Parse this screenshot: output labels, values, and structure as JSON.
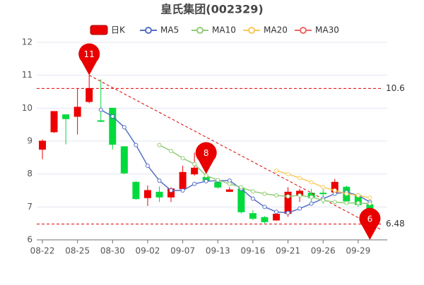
{
  "chart_data": {
    "type": "candlestick",
    "title": "皇氏集团(002329)",
    "categories": [
      "08-22",
      null,
      null,
      "08-25",
      null,
      null,
      "08-30",
      null,
      null,
      "09-02",
      null,
      null,
      "09-07",
      null,
      null,
      "09-13",
      null,
      null,
      "09-16",
      null,
      null,
      "09-21",
      null,
      null,
      "09-26",
      null,
      null,
      "09-29",
      null
    ],
    "candles": {
      "name": "日K",
      "up_color": "#ec0000",
      "down_color": "#00da3c",
      "open": [
        8.75,
        9.28,
        9.8,
        9.75,
        10.2,
        9.62,
        10.0,
        8.83,
        7.75,
        7.28,
        7.45,
        7.3,
        7.55,
        8.0,
        7.9,
        7.75,
        7.47,
        7.55,
        6.8,
        6.68,
        6.6,
        6.8,
        7.35,
        7.42,
        7.42,
        7.45,
        7.6,
        7.35,
        7.07
      ],
      "close": [
        9.0,
        9.9,
        9.68,
        10.03,
        10.6,
        9.6,
        8.9,
        8.03,
        7.25,
        7.5,
        7.3,
        7.55,
        8.05,
        8.18,
        7.8,
        7.6,
        7.52,
        6.85,
        6.65,
        6.55,
        6.78,
        7.45,
        7.48,
        7.28,
        7.4,
        7.75,
        7.18,
        7.07,
        6.55
      ],
      "high": [
        9.05,
        9.9,
        9.8,
        10.6,
        11.0,
        10.88,
        10.0,
        8.85,
        7.78,
        7.65,
        7.62,
        7.6,
        8.25,
        8.65,
        8.0,
        7.8,
        7.6,
        7.58,
        6.9,
        6.72,
        6.85,
        7.6,
        7.55,
        7.55,
        7.55,
        7.85,
        7.65,
        7.4,
        7.07
      ],
      "low": [
        8.45,
        9.25,
        8.9,
        9.2,
        10.15,
        9.58,
        8.75,
        8.0,
        7.22,
        7.03,
        7.15,
        7.15,
        7.45,
        7.95,
        7.75,
        7.55,
        7.45,
        6.8,
        6.6,
        6.5,
        6.58,
        6.7,
        7.15,
        7.1,
        7.1,
        7.4,
        7.1,
        7.0,
        6.48
      ]
    },
    "series": [
      {
        "name": "MA5",
        "color": "#5470c6",
        "values": [
          null,
          null,
          null,
          null,
          null,
          9.95,
          9.75,
          9.42,
          8.88,
          8.25,
          7.8,
          7.5,
          7.5,
          7.7,
          7.78,
          7.8,
          7.8,
          7.55,
          7.25,
          7.0,
          6.85,
          6.82,
          6.95,
          7.1,
          7.25,
          7.4,
          7.45,
          7.35,
          7.15
        ]
      },
      {
        "name": "MA10",
        "color": "#91cc75",
        "values": [
          null,
          null,
          null,
          null,
          null,
          null,
          null,
          null,
          null,
          null,
          8.88,
          8.7,
          8.48,
          8.3,
          7.95,
          7.82,
          7.7,
          7.6,
          7.47,
          7.4,
          7.35,
          7.32,
          7.35,
          7.3,
          7.2,
          7.15,
          7.12,
          7.12,
          7.1
        ]
      },
      {
        "name": "MA20",
        "color": "#fac858",
        "values": [
          null,
          null,
          null,
          null,
          null,
          null,
          null,
          null,
          null,
          null,
          null,
          null,
          null,
          null,
          null,
          null,
          null,
          null,
          null,
          null,
          8.1,
          8.0,
          7.88,
          7.75,
          7.6,
          7.5,
          7.4,
          7.35,
          7.28
        ]
      },
      {
        "name": "MA30",
        "color": "#ee6666",
        "values": [
          null,
          null,
          null,
          null,
          null,
          null,
          null,
          null,
          null,
          null,
          null,
          null,
          null,
          null,
          null,
          null,
          null,
          null,
          null,
          null,
          null,
          null,
          null,
          null,
          null,
          null,
          null,
          null,
          null
        ]
      }
    ],
    "mark_points": [
      {
        "index": 4,
        "value": 11
      },
      {
        "index": 14,
        "value": 8
      },
      {
        "index": 28,
        "value": 6
      }
    ],
    "mark_lines": [
      10.6,
      6.48
    ],
    "trend_line": [
      [
        4,
        11.0
      ],
      [
        29,
        6.3
      ]
    ],
    "ylim": [
      6,
      12
    ],
    "yticks": [
      6,
      7,
      8,
      9,
      10,
      11,
      12
    ],
    "grid": true
  }
}
